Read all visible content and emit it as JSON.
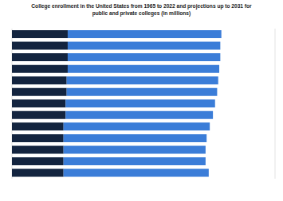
{
  "chart_data": {
    "type": "bar",
    "title": "College enrollment in the United States from 1965 to 2022 and projections up to 2031 for public and private colleges (in millions)",
    "orientation": "horizontal",
    "stacked": true,
    "grid": true,
    "tick_labels": false,
    "categories": [
      null,
      null,
      null,
      null,
      null,
      null,
      null,
      null,
      null,
      null,
      null,
      null,
      null
    ],
    "xlim": [
      0,
      25
    ],
    "xticks": [
      0,
      5,
      10,
      15,
      20,
      25
    ],
    "series": [
      {
        "color": "#13243f",
        "values": [
          5.3,
          5.3,
          5.3,
          5.3,
          5.2,
          5.2,
          5.1,
          5.1,
          4.9,
          4.9,
          4.9,
          4.9,
          4.9
        ]
      },
      {
        "color": "#3b7dd8",
        "values": [
          14.6,
          14.5,
          14.5,
          14.4,
          14.4,
          14.3,
          14.2,
          14.0,
          13.9,
          13.6,
          13.5,
          13.5,
          13.8
        ]
      }
    ]
  }
}
